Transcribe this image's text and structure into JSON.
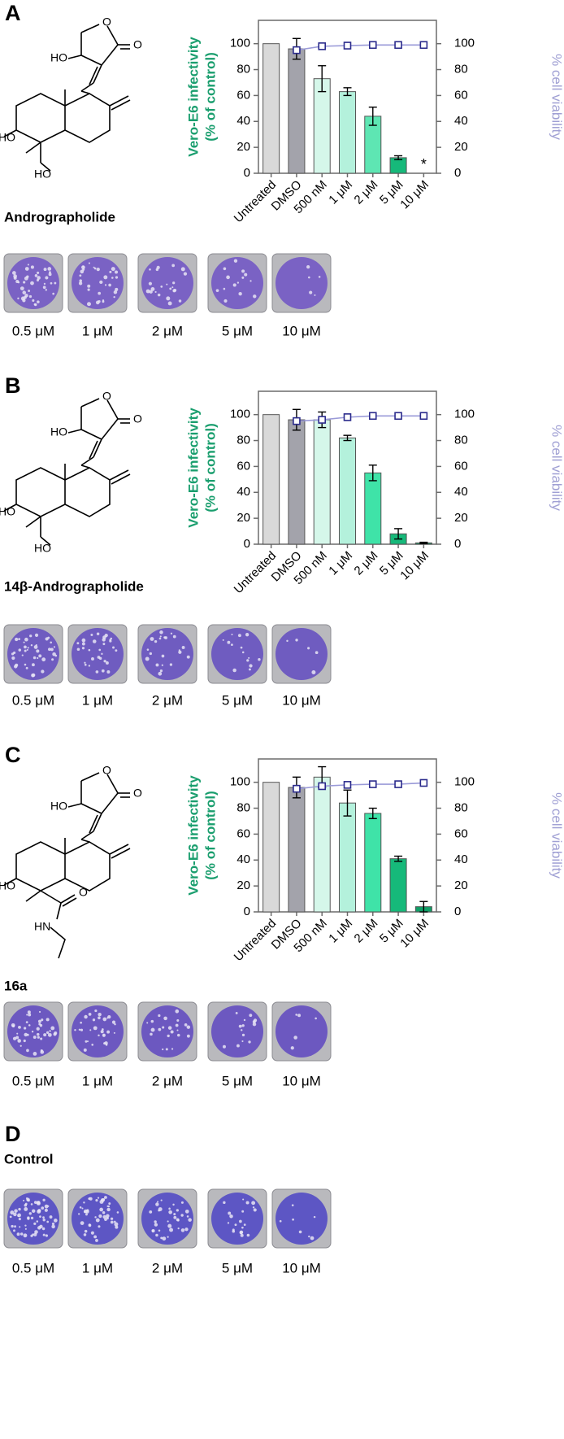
{
  "panels": [
    {
      "letter": "A",
      "compound": "Andrographolide",
      "structure_labels": [
        "HO",
        "O",
        "O",
        "HO",
        "HO"
      ],
      "well_labels": [
        "0.5 μM",
        "1 μM",
        "2 μM",
        "5 μM",
        "10 μM"
      ]
    },
    {
      "letter": "B",
      "compound": "14β-Andrographolide",
      "structure_labels": [
        "HO",
        "O",
        "O",
        "HO",
        "HO"
      ],
      "well_labels": [
        "0.5 μM",
        "1 μM",
        "2 μM",
        "5 μM",
        "10 μM"
      ]
    },
    {
      "letter": "C",
      "compound": "16a",
      "structure_labels": [
        "HO",
        "O",
        "O",
        "HO",
        "O",
        "HN"
      ],
      "well_labels": [
        "0.5 μM",
        "1 μM",
        "2 μM",
        "5 μM",
        "10 μM"
      ]
    },
    {
      "letter": "D",
      "compound": "Control",
      "well_labels": [
        "0.5 μM",
        "1 μM",
        "2 μM",
        "5 μM",
        "10 μM"
      ]
    }
  ],
  "chart_data": [
    {
      "type": "bar",
      "y_label": "Vero-E6 infectivity\n(% of control)",
      "y2_label": "% cell viability",
      "categories": [
        "Untreated",
        "DMSO",
        "500 nM",
        "1 μM",
        "2 μM",
        "5 μM",
        "10 μM"
      ],
      "ylim": [
        0,
        118
      ],
      "yticks": [
        0,
        20,
        40,
        60,
        80,
        100
      ],
      "y2lim": [
        0,
        118
      ],
      "y2ticks": [
        0,
        20,
        40,
        60,
        80,
        100
      ],
      "annotation": "*",
      "series": [
        {
          "type": "bar",
          "colors": [
            "#d9d9d9",
            "#a3a3ab",
            "#d5f7ea",
            "#b4f1dc",
            "#5ee6b3",
            "#16b97a",
            "#0f9e66"
          ],
          "values": [
            100,
            96,
            73,
            63,
            44,
            12,
            0
          ],
          "errors": [
            0,
            8,
            10,
            3,
            7,
            1.5,
            0
          ]
        },
        {
          "type": "line",
          "axis": "y2",
          "color": "#2b2b8c",
          "values": [
            null,
            95,
            98,
            98.5,
            99,
            99,
            99
          ]
        }
      ]
    },
    {
      "type": "bar",
      "y_label": "Vero-E6 infectivity\n(% of control)",
      "y2_label": "% cell viability",
      "categories": [
        "Untreated",
        "DMSO",
        "500 nM",
        "1 μM",
        "2 μM",
        "5 μM",
        "10 μM"
      ],
      "ylim": [
        0,
        118
      ],
      "yticks": [
        0,
        20,
        40,
        60,
        80,
        100
      ],
      "y2lim": [
        0,
        118
      ],
      "y2ticks": [
        0,
        20,
        40,
        60,
        80,
        100
      ],
      "series": [
        {
          "type": "bar",
          "colors": [
            "#d9d9d9",
            "#a3a3ab",
            "#d5f7ea",
            "#b4f1dc",
            "#3fe3a8",
            "#16b97a",
            "#0f9e66"
          ],
          "values": [
            100,
            96,
            96,
            82,
            55,
            8,
            1
          ],
          "errors": [
            0,
            8,
            6,
            2,
            6,
            4,
            0.5
          ]
        },
        {
          "type": "line",
          "axis": "y2",
          "color": "#2b2b8c",
          "values": [
            null,
            95,
            96,
            98,
            99,
            99,
            99
          ]
        }
      ]
    },
    {
      "type": "bar",
      "y_label": "Vero-E6 infectivity\n(% of control)",
      "y2_label": "% cell viability",
      "categories": [
        "Untreated",
        "DMSO",
        "500 nM",
        "1 μM",
        "2 μM",
        "5 μM",
        "10 μM"
      ],
      "ylim": [
        0,
        118
      ],
      "yticks": [
        0,
        20,
        40,
        60,
        80,
        100
      ],
      "y2lim": [
        0,
        118
      ],
      "y2ticks": [
        0,
        20,
        40,
        60,
        80,
        100
      ],
      "series": [
        {
          "type": "bar",
          "colors": [
            "#d9d9d9",
            "#a3a3ab",
            "#d5f7ea",
            "#b4f1dc",
            "#3fe3a8",
            "#16b97a",
            "#0f9e66"
          ],
          "values": [
            100,
            96,
            104,
            84,
            76,
            41,
            4
          ],
          "errors": [
            0,
            8,
            8,
            10,
            4,
            2,
            4
          ]
        },
        {
          "type": "line",
          "axis": "y2",
          "color": "#2b2b8c",
          "values": [
            null,
            95,
            97,
            98,
            98.5,
            98.5,
            99.5
          ]
        }
      ]
    }
  ]
}
